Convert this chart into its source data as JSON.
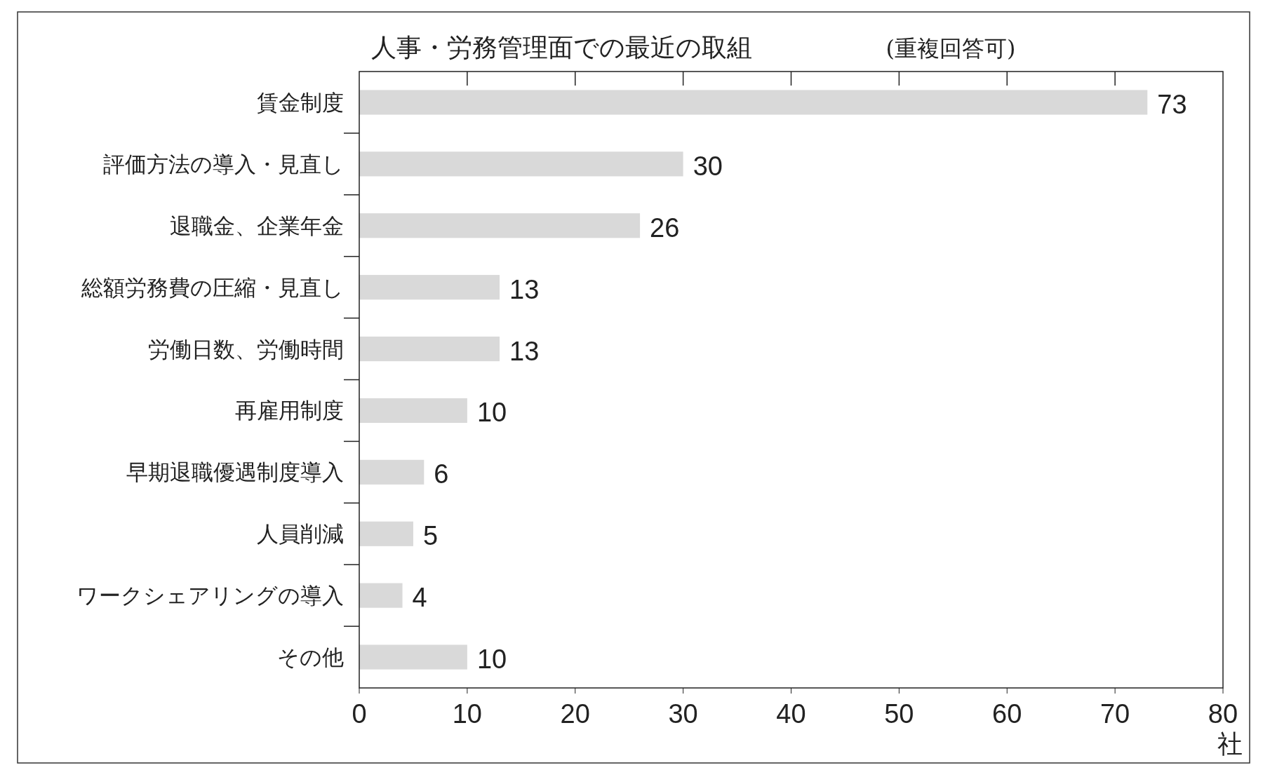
{
  "chart_data": {
    "type": "bar",
    "orientation": "horizontal",
    "title": "人事・労務管理面での最近の取組",
    "subtitle": "(重複回答可)",
    "xlabel": "社",
    "categories": [
      "賃金制度",
      "評価方法の導入・見直し",
      "退職金、企業年金",
      "総額労務費の圧縮・見直し",
      "労働日数、労働時間",
      "再雇用制度",
      "早期退職優遇制度導入",
      "人員削減",
      "ワークシェアリングの導入",
      "その他"
    ],
    "values": [
      73,
      30,
      26,
      13,
      13,
      10,
      6,
      5,
      4,
      10
    ],
    "color": "#d9d9d9",
    "xlim": [
      0,
      80
    ],
    "xticks": [
      0,
      10,
      20,
      30,
      40,
      50,
      60,
      70,
      80
    ],
    "data_labels": true,
    "grid": false
  }
}
